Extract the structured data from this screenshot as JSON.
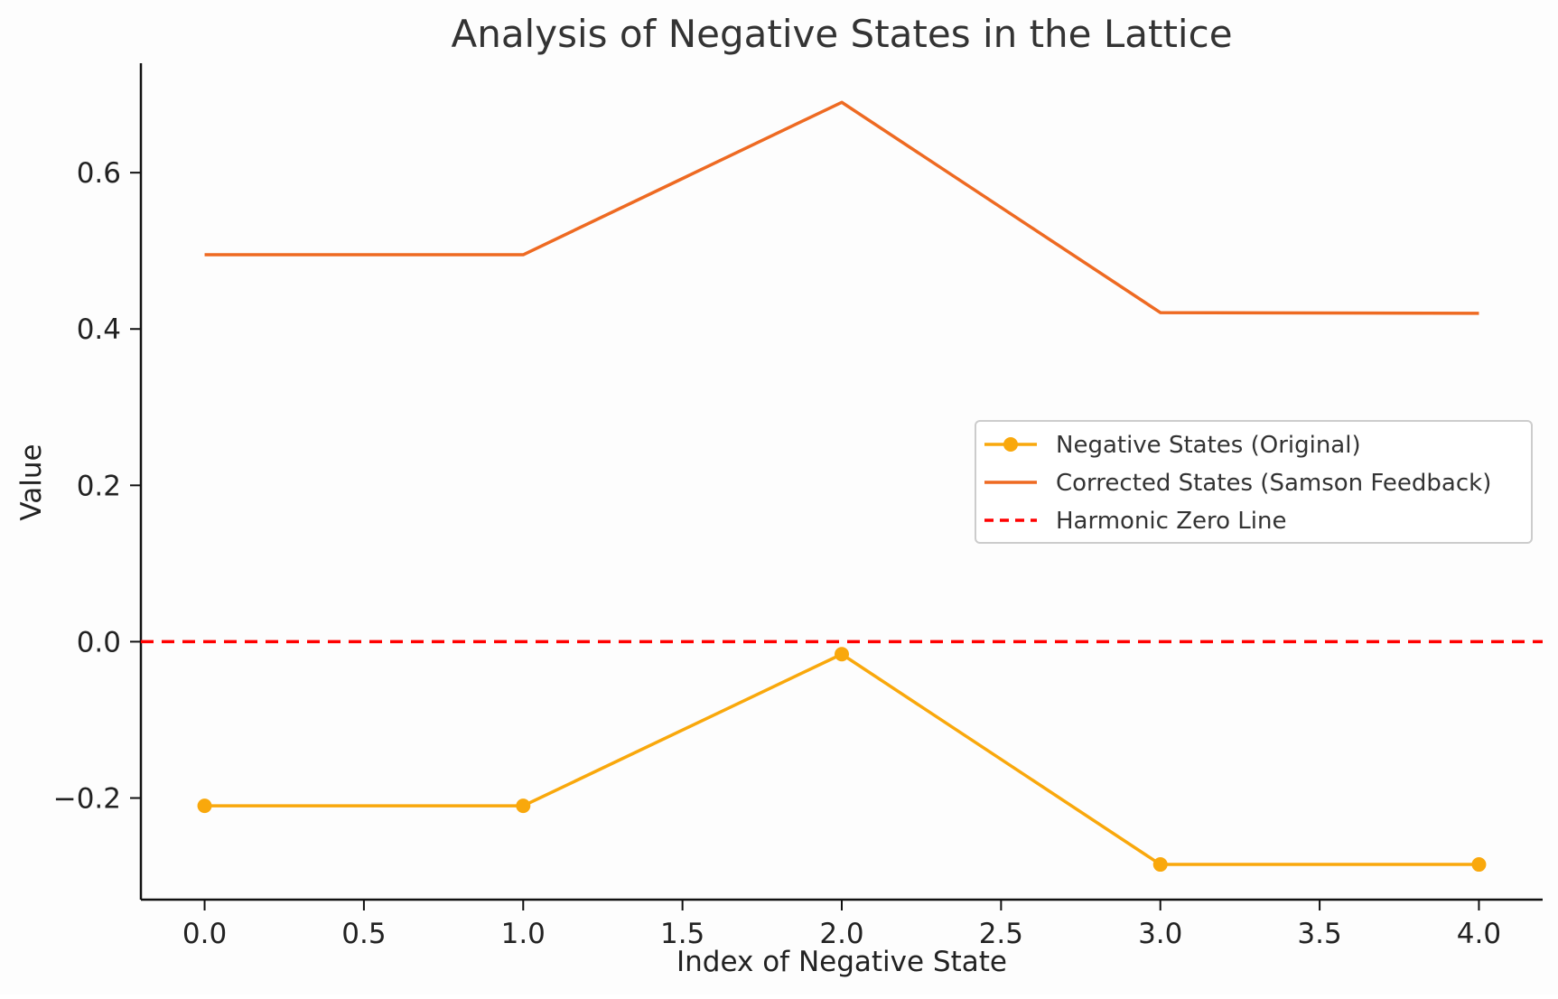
{
  "chart_data": {
    "type": "line",
    "title": "Analysis of Negative States in the Lattice",
    "xlabel": "Index of Negative State",
    "ylabel": "Value",
    "x": [
      0,
      1,
      2,
      3,
      4
    ],
    "xlim": [
      -0.2,
      4.2
    ],
    "ylim": [
      -0.33,
      0.74
    ],
    "xticks": [
      0.0,
      0.5,
      1.0,
      1.5,
      2.0,
      2.5,
      3.0,
      3.5,
      4.0
    ],
    "xtick_labels": [
      "0.0",
      "0.5",
      "1.0",
      "1.5",
      "2.0",
      "2.5",
      "3.0",
      "3.5",
      "4.0"
    ],
    "yticks": [
      -0.2,
      0.0,
      0.2,
      0.4,
      0.6
    ],
    "ytick_labels": [
      "−0.2",
      "0.0",
      "0.2",
      "0.4",
      "0.6"
    ],
    "grid": false,
    "legend_position": "center-right",
    "series": [
      {
        "name": "Negative States (Original)",
        "values": [
          -0.21,
          -0.21,
          -0.016,
          -0.285,
          -0.285
        ],
        "color": "#F9A80C",
        "marker": "circle",
        "linestyle": "solid"
      },
      {
        "name": "Corrected States (Samson Feedback)",
        "values": [
          0.495,
          0.495,
          0.69,
          0.421,
          0.42
        ],
        "color": "#EE6A22",
        "marker": "none",
        "linestyle": "solid"
      }
    ],
    "reference_lines": [
      {
        "name": "Harmonic Zero Line",
        "y": 0.0,
        "color": "#FF0000",
        "linestyle": "dashed"
      }
    ]
  }
}
